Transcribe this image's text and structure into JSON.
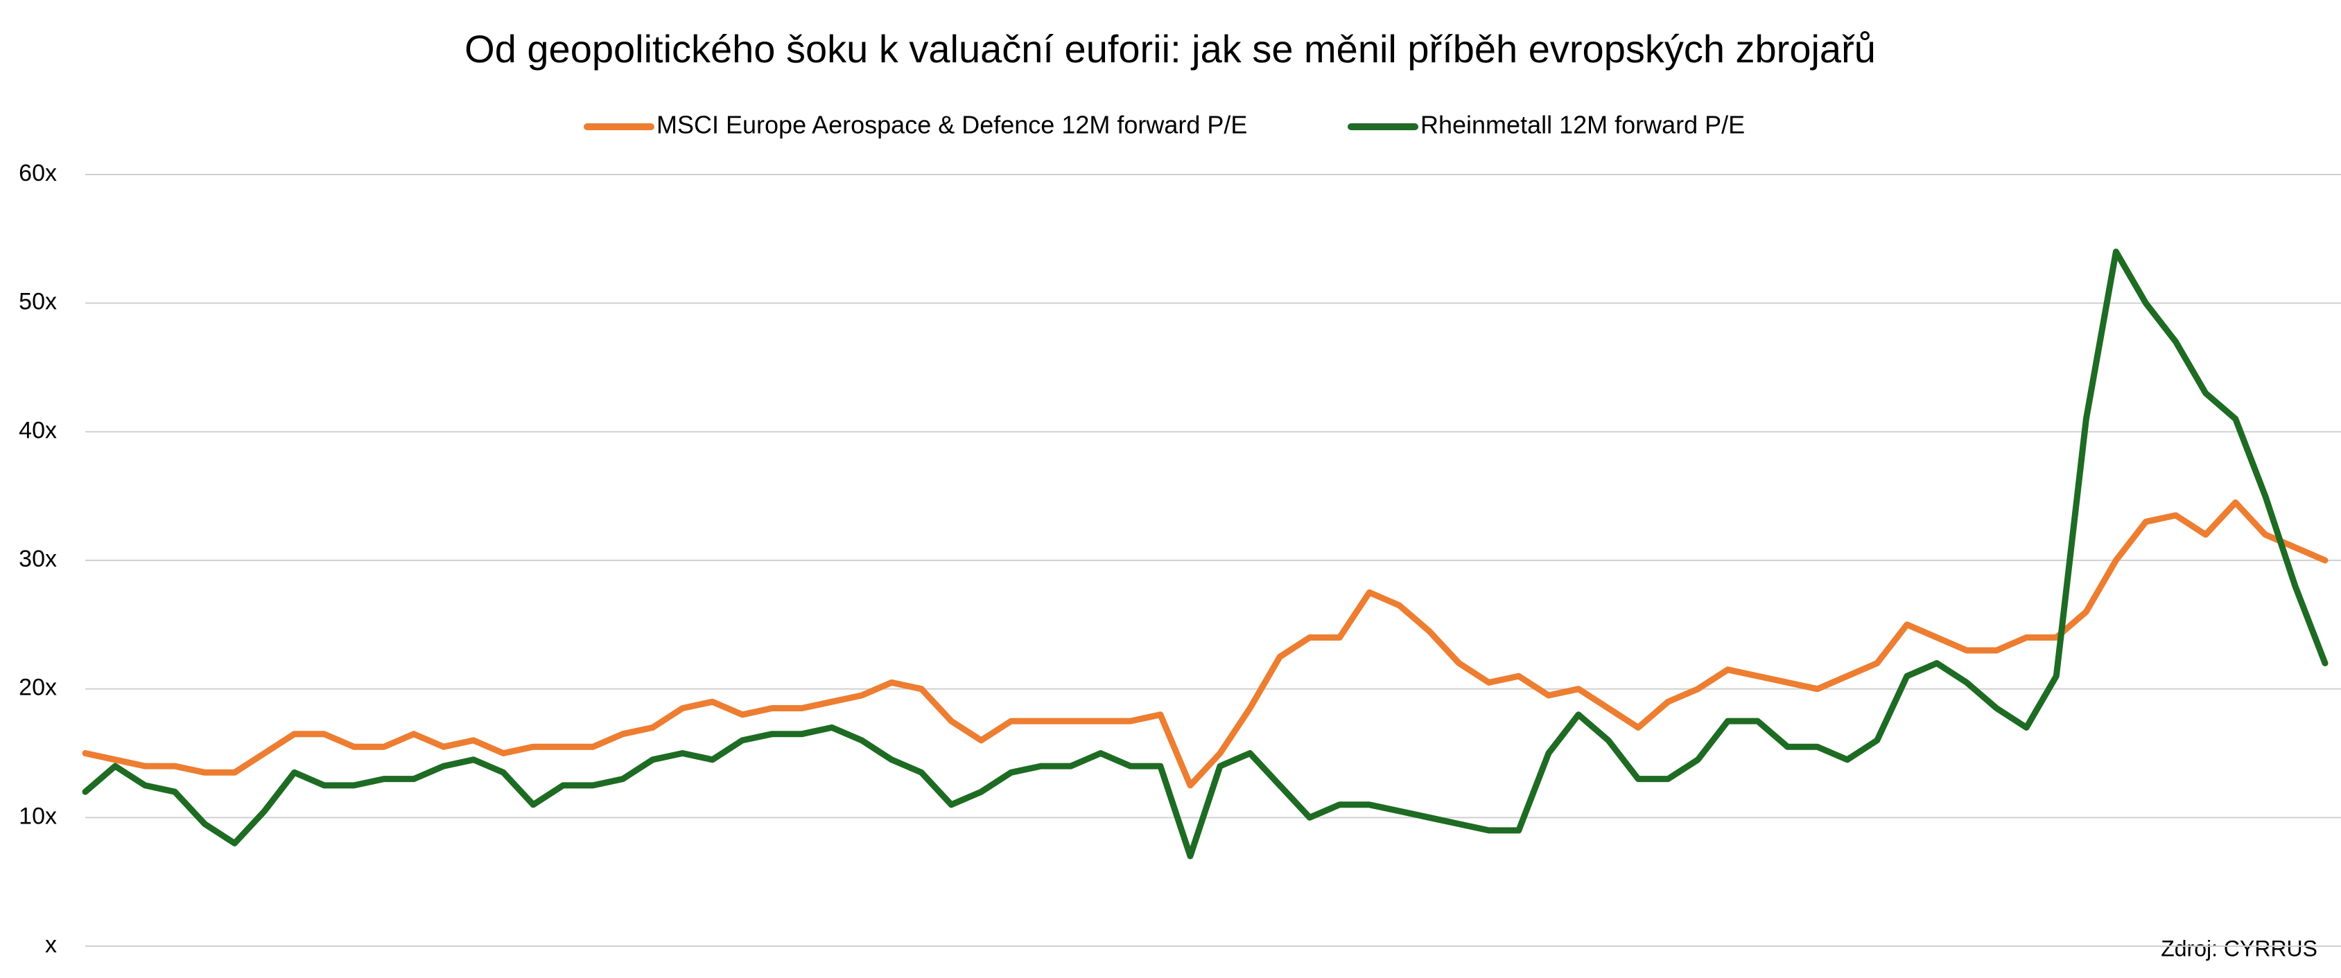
{
  "chart_data": {
    "type": "line",
    "title": "Od geopolitického šoku k valuační euforii: jak se měnil příběh evropských zbrojařů",
    "source": "Zdroj: CYRRUS",
    "ylim": [
      0,
      60
    ],
    "yticks": [
      {
        "value": 0,
        "label": "x"
      },
      {
        "value": 10,
        "label": "10x"
      },
      {
        "value": 20,
        "label": "20x"
      },
      {
        "value": 30,
        "label": "30x"
      },
      {
        "value": 40,
        "label": "40x"
      },
      {
        "value": 50,
        "label": "50x"
      },
      {
        "value": 60,
        "label": "60x"
      }
    ],
    "grid": true,
    "legend": "top",
    "series": [
      {
        "name": "MSCI Europe Aerospace & Defence 12M forward P/E",
        "color": "#ed7d31",
        "values": [
          15,
          14.5,
          14,
          14,
          13.5,
          13.5,
          15,
          16.5,
          16.5,
          15.5,
          15.5,
          16.5,
          15.5,
          16,
          15,
          15.5,
          15.5,
          15.5,
          16.5,
          17,
          18.5,
          19,
          18,
          18.5,
          18.5,
          19,
          19.5,
          20.5,
          20,
          17.5,
          16,
          17.5,
          17.5,
          17.5,
          17.5,
          17.5,
          18,
          12.5,
          15,
          18.5,
          22.5,
          24,
          24,
          27.5,
          26.5,
          24.5,
          22,
          20.5,
          21,
          19.5,
          20,
          18.5,
          17,
          19,
          20,
          21.5,
          21,
          20.5,
          20,
          21,
          22,
          25,
          24,
          23,
          23,
          24,
          24,
          26,
          30,
          33,
          33.5,
          32,
          34.5,
          32,
          31,
          30
        ]
      },
      {
        "name": "Rheinmetall 12M forward P/E",
        "color": "#1e6b24",
        "values": [
          12,
          14,
          12.5,
          12,
          9.5,
          8,
          10.5,
          13.5,
          12.5,
          12.5,
          13,
          13,
          14,
          14.5,
          13.5,
          11,
          12.5,
          12.5,
          13,
          14.5,
          15,
          14.5,
          16,
          16.5,
          16.5,
          17,
          16,
          14.5,
          13.5,
          11,
          12,
          13.5,
          14,
          14,
          15,
          14,
          14,
          7,
          14,
          15,
          12.5,
          10,
          11,
          11,
          10.5,
          10,
          9.5,
          9,
          9,
          15,
          18,
          16,
          13,
          13,
          14.5,
          17.5,
          17.5,
          15.5,
          15.5,
          14.5,
          16,
          21,
          22,
          20.5,
          18.5,
          17,
          21,
          41,
          54,
          50,
          47,
          43,
          41,
          35,
          28,
          22
        ]
      }
    ]
  }
}
